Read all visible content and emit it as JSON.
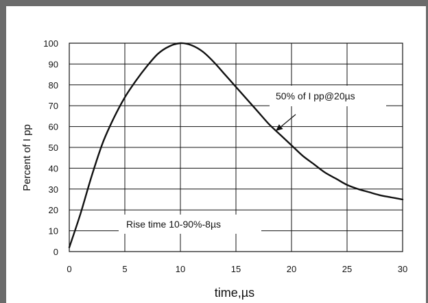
{
  "chart_data": {
    "type": "line",
    "xlabel": "time,µs",
    "ylabel": "Percent of I pp",
    "xlim": [
      0,
      30
    ],
    "ylim": [
      0,
      100
    ],
    "x_ticks": [
      "0",
      "5",
      "10",
      "15",
      "20",
      "25",
      "30"
    ],
    "y_ticks": [
      "0",
      "10",
      "20",
      "30",
      "40",
      "50",
      "60",
      "70",
      "80",
      "90",
      "100"
    ],
    "grid": true,
    "series": [
      {
        "x": [
          0,
          1,
          2,
          3,
          4,
          5,
          6,
          7,
          8,
          9,
          10,
          11,
          12,
          13,
          14,
          15,
          16,
          17,
          18,
          19,
          20,
          21,
          22,
          23,
          24,
          25,
          26,
          27,
          28,
          29,
          30
        ],
        "values": [
          2,
          18,
          36,
          52,
          64,
          74,
          82,
          89,
          95,
          98.5,
          100,
          99,
          96,
          91,
          85,
          79,
          73,
          67,
          61,
          56,
          51,
          46,
          42,
          38,
          35,
          32,
          30,
          28.5,
          27,
          26,
          25
        ]
      }
    ],
    "annotations": [
      {
        "text": "50% of I pp@20µs"
      },
      {
        "text": "Rise time 10-90%-8µs"
      }
    ]
  }
}
